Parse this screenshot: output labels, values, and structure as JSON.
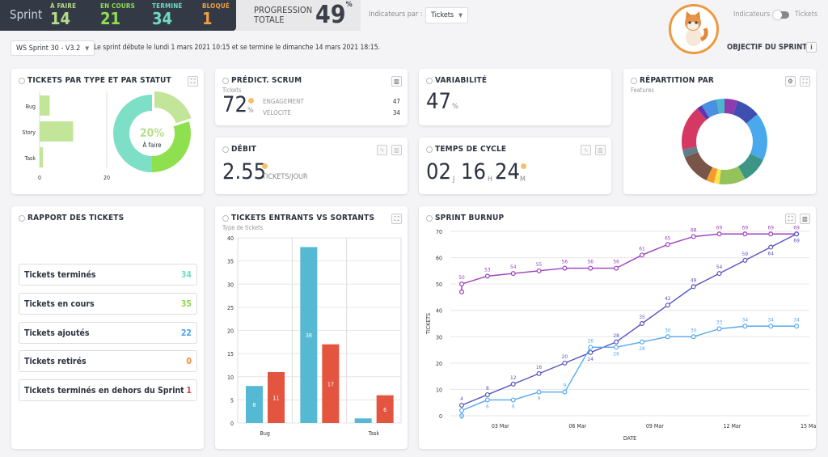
{
  "topbar": {
    "sprint_label": "Sprint",
    "stats": [
      {
        "label": "À FAIRE",
        "value": "14",
        "color": "#b5dd8a"
      },
      {
        "label": "EN COURS",
        "value": "21",
        "color": "#8ee04f"
      },
      {
        "label": "TERMINÉ",
        "value": "34",
        "color": "#6fdcc2"
      },
      {
        "label": "BLOQUÉ",
        "value": "1",
        "color": "#f0a040"
      }
    ]
  },
  "progression": {
    "label1": "PROGRESSION",
    "label2": "TOTALE",
    "value": "49",
    "unit": "%"
  },
  "indicators": {
    "label": "Indicateurs par :",
    "selected": "Tickets"
  },
  "toggle": {
    "left": "Indicateurs",
    "right": "Tickets"
  },
  "objective": {
    "label": "OBJECTIF DU SPRINT",
    "info": "i"
  },
  "sprint_select": {
    "selected": "WS Sprint 30 - V3.2"
  },
  "sprint_desc": "Le sprint débute le lundi 1 mars 2021 10:15 et se termine le dimanche 14 mars 2021 18:15.",
  "type_status": {
    "title": "TICKETS PAR TYPE ET PAR STATUT",
    "bars": [
      {
        "label": "Bug",
        "value": 3
      },
      {
        "label": "Story",
        "value": 10
      },
      {
        "label": "Task",
        "value": 1
      }
    ],
    "axis": [
      "0",
      "20"
    ],
    "donut": [
      {
        "name": "À faire",
        "pct": 20,
        "color": "#c3e59a"
      },
      {
        "name": "En cours",
        "pct": 30,
        "color": "#8ee04f"
      },
      {
        "name": "Terminé",
        "pct": 50,
        "color": "#7ddfc5"
      }
    ],
    "center_value": "20%",
    "center_label": "À faire"
  },
  "predict": {
    "title": "PRÉDICT. SCRUM",
    "sub": "Tickets",
    "value": "72",
    "unit": "%",
    "rows": [
      {
        "label": "ENGAGEMENT",
        "value": "47"
      },
      {
        "label": "VÉLOCITÉ",
        "value": "34"
      }
    ]
  },
  "variability": {
    "title": "VARIABILITÉ",
    "value": "47",
    "unit": "%"
  },
  "debit": {
    "title": "DÉBIT",
    "value": "2.55",
    "unit": "TICKETS/JOUR"
  },
  "cycle": {
    "title": "TEMPS DE CYCLE",
    "d": "02",
    "d_unit": "J",
    "h": "16",
    "h_unit": "H",
    "m": "24",
    "m_unit": "M"
  },
  "repartition": {
    "title": "RÉPARTITION PAR",
    "sub": "Features",
    "slices": [
      {
        "pct": 5,
        "color": "#8e3bb0"
      },
      {
        "pct": 9,
        "color": "#3f4fb0"
      },
      {
        "pct": 18,
        "color": "#4aa8ec"
      },
      {
        "pct": 10,
        "color": "#3d9685"
      },
      {
        "pct": 10,
        "color": "#93c35a"
      },
      {
        "pct": 2,
        "color": "#fbe54a"
      },
      {
        "pct": 3,
        "color": "#f39c2d"
      },
      {
        "pct": 12,
        "color": "#785548"
      },
      {
        "pct": 3,
        "color": "#607d8b"
      },
      {
        "pct": 17,
        "color": "#d63864"
      },
      {
        "pct": 2,
        "color": "#5e35b1"
      },
      {
        "pct": 6,
        "color": "#4a90e2"
      },
      {
        "pct": 3,
        "color": "#4ab8c8"
      }
    ]
  },
  "report": {
    "title": "RAPPORT DES TICKETS",
    "rows": [
      {
        "label": "Tickets terminés",
        "value": "34",
        "color": "#6fdcc2"
      },
      {
        "label": "Tickets en cours",
        "value": "35",
        "color": "#8ed84f"
      },
      {
        "label": "Tickets ajoutés",
        "value": "22",
        "color": "#4aa0f0"
      },
      {
        "label": "Tickets retirés",
        "value": "0",
        "color": "#f08c30"
      },
      {
        "label": "Tickets terminés en dehors du Sprint",
        "value": "1",
        "color": "#e04040"
      }
    ]
  },
  "chart_data": [
    {
      "type": "bar",
      "title": "TICKETS ENTRANTS VS SORTANTS",
      "subtitle": "Type de tickets",
      "categories": [
        "Bug",
        "",
        "Task"
      ],
      "ylim": [
        0,
        40
      ],
      "yticks": [
        0,
        5,
        10,
        15,
        20,
        25,
        30,
        35,
        40
      ],
      "grid": true,
      "series": [
        {
          "values": [
            8,
            38,
            1
          ],
          "color": "#56b9d3",
          "labels": [
            "8",
            "38",
            ""
          ]
        },
        {
          "values": [
            11,
            17,
            6
          ],
          "color": "#e4553f",
          "labels": [
            "11",
            "17",
            "6"
          ]
        }
      ]
    },
    {
      "type": "line",
      "title": "SPRINT BURNUP",
      "xlabel": "DATE",
      "ylabel": "TICKETS",
      "ylim": [
        0,
        70
      ],
      "yticks": [
        0,
        10,
        20,
        30,
        40,
        50,
        60,
        70
      ],
      "xticks": [
        "03 Mar",
        "06 Mar",
        "09 Mar",
        "12 Mar",
        "15 Mar"
      ],
      "grid": true,
      "x": [
        "01 Mar",
        "02 Mar",
        "03 Mar",
        "04 Mar",
        "05 Mar",
        "06 Mar",
        "07 Mar",
        "08 Mar",
        "09 Mar",
        "10 Mar",
        "11 Mar",
        "12 Mar",
        "13 Mar",
        "14 Mar"
      ],
      "series": [
        {
          "color": "#9c3fbf",
          "start": 47,
          "values": [
            50,
            53,
            54,
            55,
            56,
            56,
            56,
            61,
            65,
            68,
            69,
            69,
            69,
            69
          ]
        },
        {
          "color": "#5554c0",
          "values": [
            4,
            8,
            12,
            16,
            20,
            24,
            28,
            35,
            42,
            49,
            54,
            59,
            64,
            69
          ]
        },
        {
          "color": "#56a8ef",
          "start": 0,
          "values": [
            2,
            6,
            6,
            9,
            9,
            26,
            26,
            28,
            30,
            30,
            33,
            34,
            34,
            34
          ]
        }
      ]
    }
  ]
}
